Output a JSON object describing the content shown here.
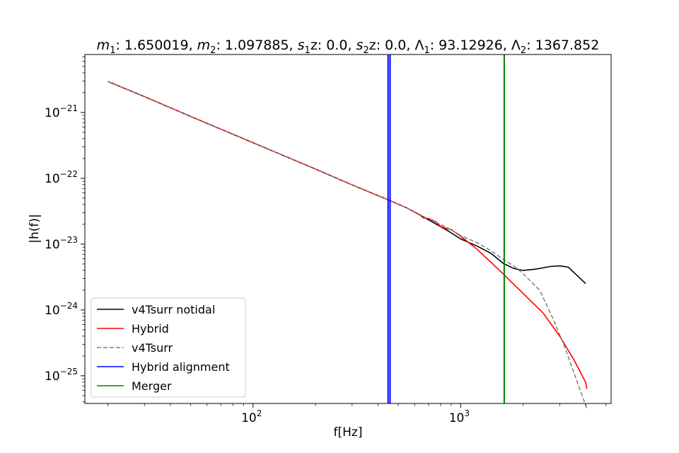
{
  "chart_data": {
    "type": "line",
    "title_parts": [
      {
        "t": "m",
        "s": "1",
        "v": ": 1.650019, "
      },
      {
        "t": "m",
        "s": "2",
        "v": ": 1.097885, "
      },
      {
        "t": "s",
        "s": "1",
        "v": "z: 0.0, "
      },
      {
        "t": "s",
        "s": "2",
        "v": "z: 0.0, "
      },
      {
        "t": "Λ",
        "s": "1",
        "v": ": 93.12926, "
      },
      {
        "t": "Λ",
        "s": "2",
        "v": ": 1367.852"
      }
    ],
    "xlabel": "f[Hz]",
    "ylabel": "|h(f)|",
    "xscale": "log",
    "yscale": "log",
    "xlim": [
      15.5,
      5300
    ],
    "ylim_log10": [
      -25.42,
      -20.12
    ],
    "x_ticks": [
      {
        "value": 100,
        "mant": "10",
        "exp": "2"
      },
      {
        "value": 1000,
        "mant": "10",
        "exp": "3"
      }
    ],
    "y_ticks": [
      {
        "value_log10": -21,
        "mant": "10",
        "exp": "−21"
      },
      {
        "value_log10": -22,
        "mant": "10",
        "exp": "−22"
      },
      {
        "value_log10": -23,
        "mant": "10",
        "exp": "−23"
      },
      {
        "value_log10": -24,
        "mant": "10",
        "exp": "−24"
      },
      {
        "value_log10": -25,
        "mant": "10",
        "exp": "−25"
      }
    ],
    "grid": false,
    "legend_position": "lower-left",
    "series": [
      {
        "name": "v4Tsurr notidal",
        "color": "#000000",
        "style": "solid",
        "points_log10_y": [
          [
            20,
            -20.53
          ],
          [
            30,
            -20.76
          ],
          [
            50,
            -21.06
          ],
          [
            100,
            -21.46
          ],
          [
            200,
            -21.86
          ],
          [
            300,
            -22.1
          ],
          [
            450,
            -22.33
          ],
          [
            550,
            -22.45
          ],
          [
            700,
            -22.63
          ],
          [
            850,
            -22.78
          ],
          [
            1000,
            -22.92
          ],
          [
            1200,
            -23.03
          ],
          [
            1400,
            -23.14
          ],
          [
            1600,
            -23.29
          ],
          [
            1800,
            -23.37
          ],
          [
            2000,
            -23.4
          ],
          [
            2300,
            -23.38
          ],
          [
            2700,
            -23.34
          ],
          [
            3000,
            -23.33
          ],
          [
            3300,
            -23.35
          ],
          [
            3700,
            -23.5
          ],
          [
            4000,
            -23.6
          ]
        ]
      },
      {
        "name": "Hybrid",
        "color": "#ff0000",
        "style": "solid",
        "points_log10_y": [
          [
            20,
            -20.53
          ],
          [
            30,
            -20.76
          ],
          [
            50,
            -21.06
          ],
          [
            100,
            -21.46
          ],
          [
            200,
            -21.86
          ],
          [
            300,
            -22.1
          ],
          [
            450,
            -22.33
          ],
          [
            550,
            -22.45
          ],
          [
            640,
            -22.56
          ],
          [
            660,
            -22.6
          ],
          [
            700,
            -22.61
          ],
          [
            760,
            -22.66
          ],
          [
            800,
            -22.73
          ],
          [
            850,
            -22.76
          ],
          [
            900,
            -22.78
          ],
          [
            1000,
            -22.88
          ],
          [
            1200,
            -23.08
          ],
          [
            1600,
            -23.45
          ],
          [
            2000,
            -23.75
          ],
          [
            2500,
            -24.05
          ],
          [
            3000,
            -24.4
          ],
          [
            3500,
            -24.75
          ],
          [
            4000,
            -25.1
          ],
          [
            4050,
            -25.2
          ]
        ]
      },
      {
        "name": "v4Tsurr",
        "color": "#808080",
        "style": "dashed",
        "points_log10_y": [
          [
            20,
            -20.53
          ],
          [
            30,
            -20.76
          ],
          [
            50,
            -21.06
          ],
          [
            100,
            -21.46
          ],
          [
            200,
            -21.86
          ],
          [
            300,
            -22.1
          ],
          [
            450,
            -22.33
          ],
          [
            550,
            -22.45
          ],
          [
            700,
            -22.62
          ],
          [
            850,
            -22.74
          ],
          [
            1000,
            -22.87
          ],
          [
            1200,
            -22.98
          ],
          [
            1400,
            -23.1
          ],
          [
            1600,
            -23.23
          ],
          [
            1800,
            -23.33
          ],
          [
            2000,
            -23.45
          ],
          [
            2400,
            -23.7
          ],
          [
            2800,
            -24.15
          ],
          [
            3200,
            -24.6
          ],
          [
            3600,
            -25.05
          ],
          [
            4000,
            -25.45
          ],
          [
            4050,
            -25.5
          ]
        ]
      }
    ],
    "vlines": [
      {
        "name": "Hybrid alignment",
        "color": "#0000ff",
        "x_values": [
          447,
          457
        ]
      },
      {
        "name": "Merger",
        "color": "#008000",
        "x_values": [
          1620
        ]
      }
    ]
  }
}
